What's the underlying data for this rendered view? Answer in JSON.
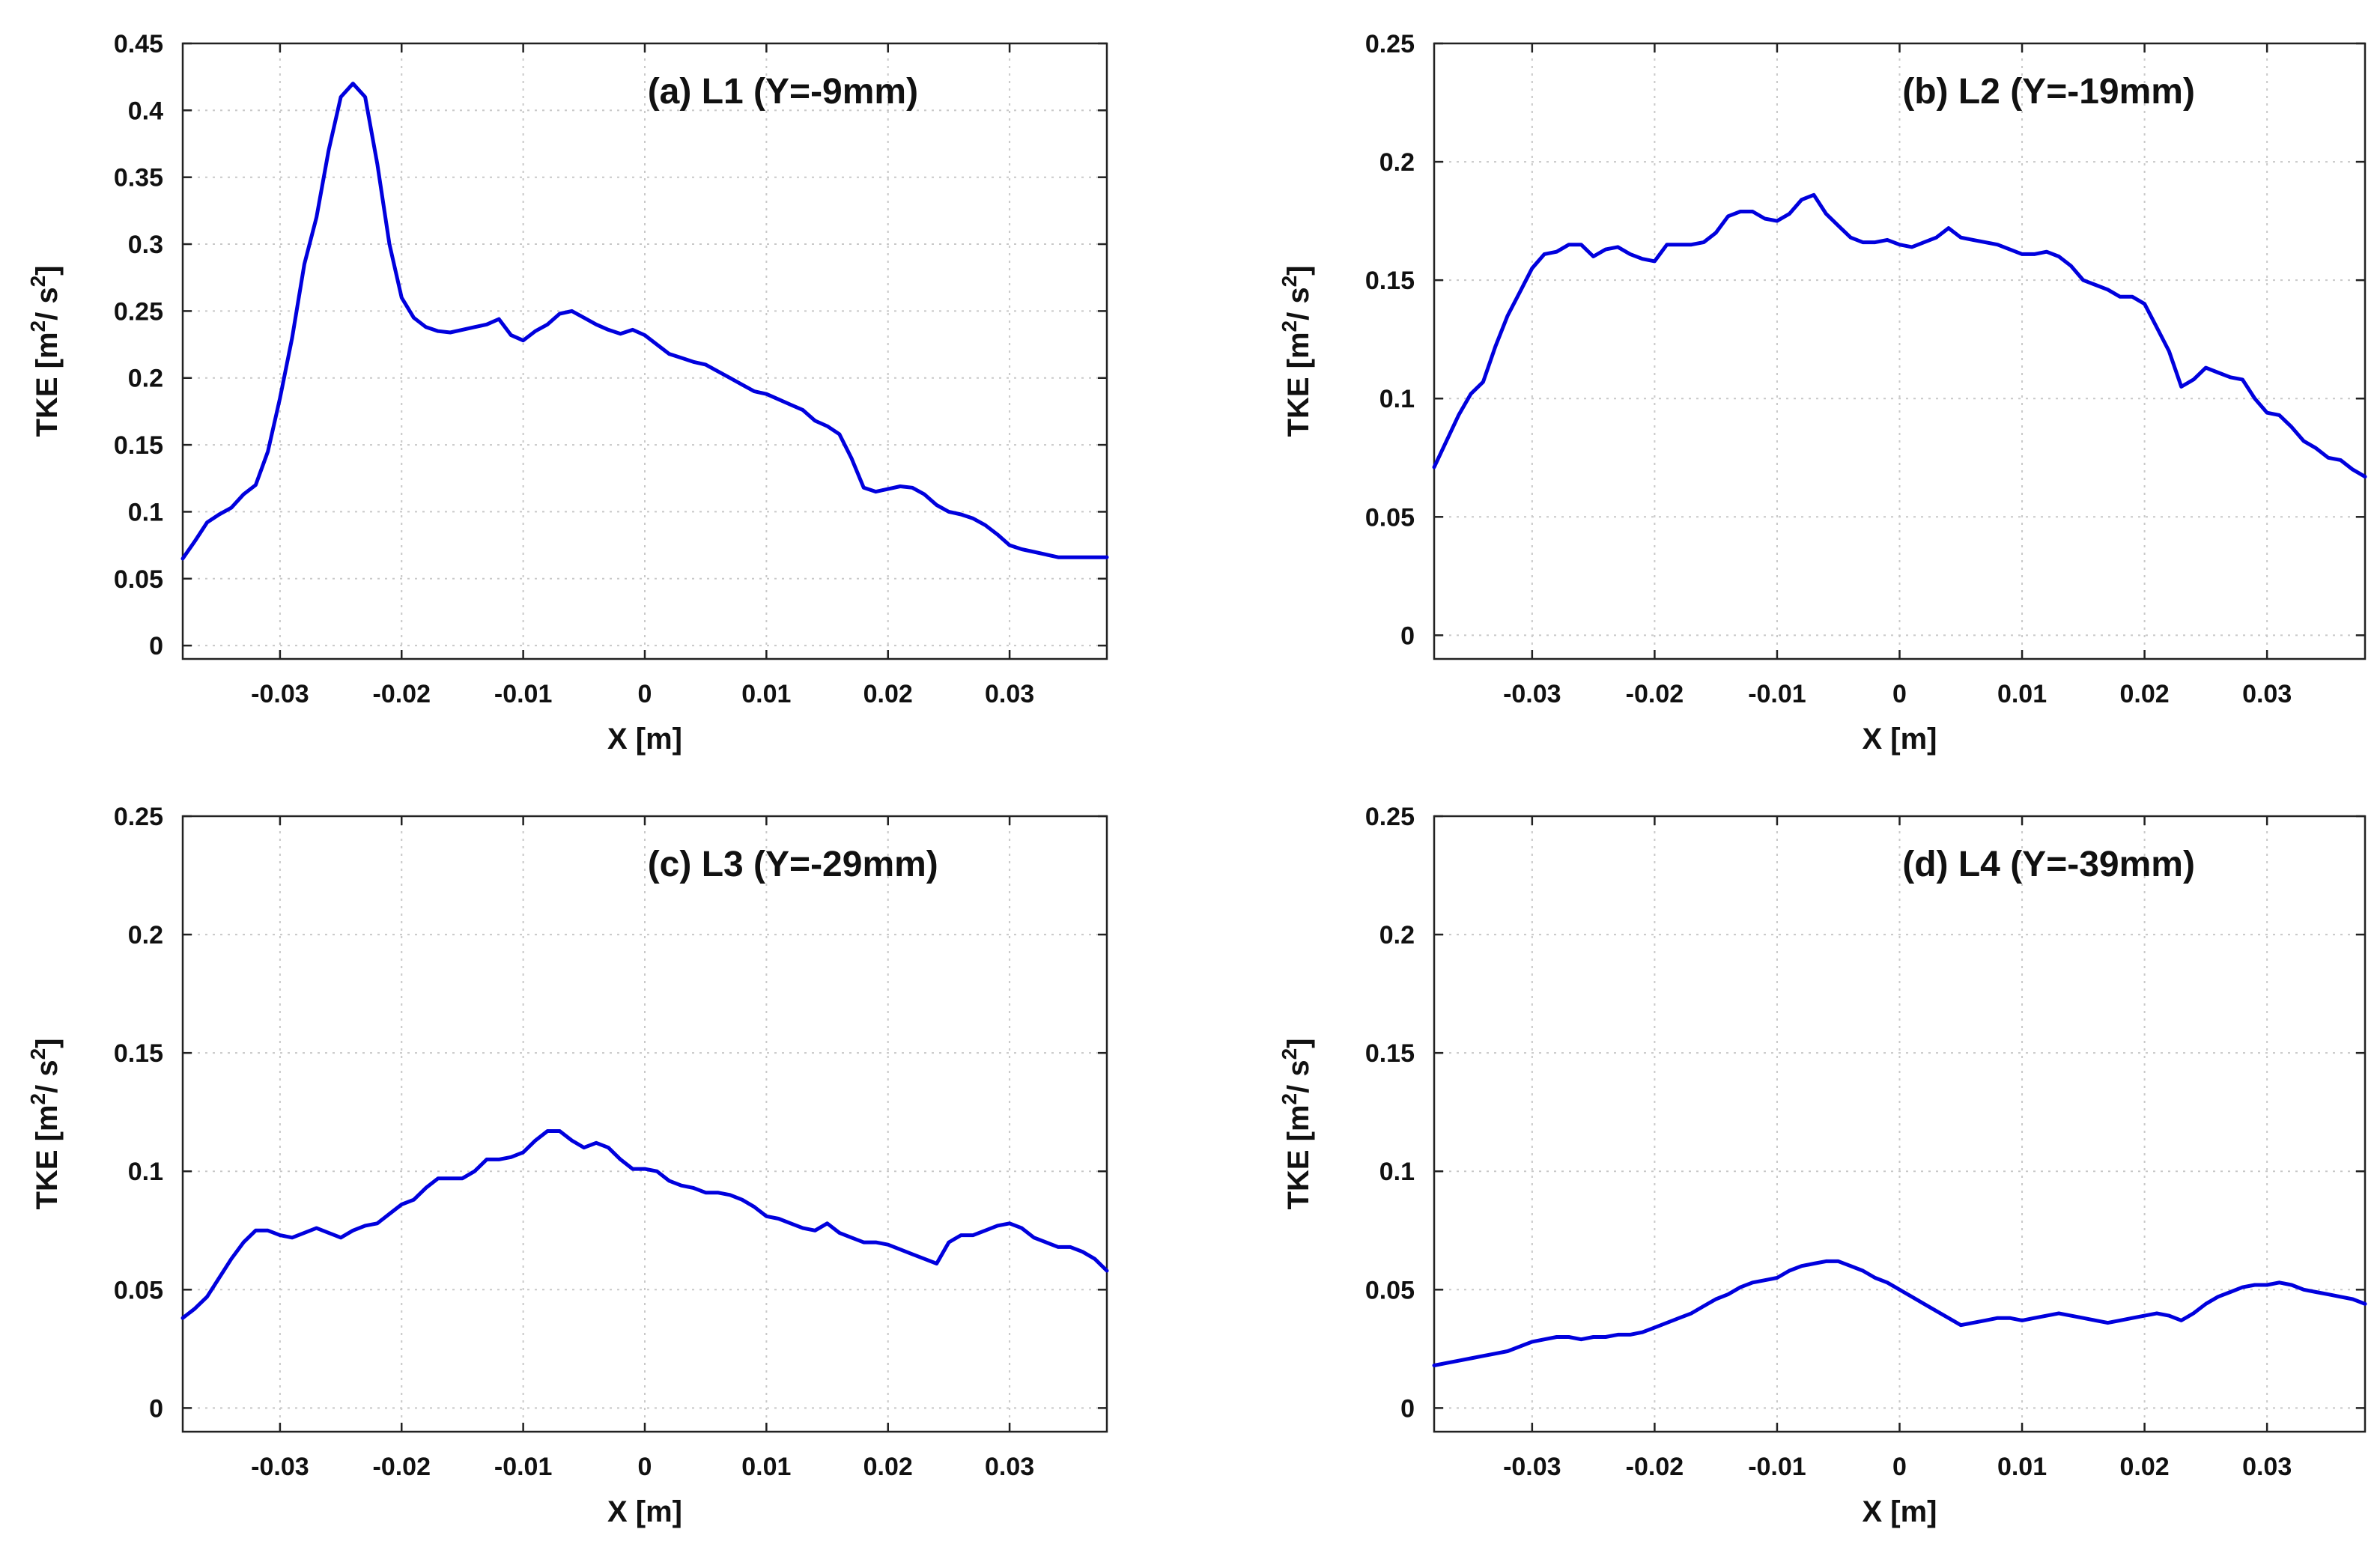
{
  "chart_data": [
    {
      "type": "line",
      "title": "(a) L1 (Y=-9mm)",
      "xlabel": "X [m]",
      "ylabel": "TKE [m2/ s2]",
      "ylabel_parts": {
        "base": "TKE [m",
        "sup1": "2",
        "mid": "/ s",
        "sup2": "2",
        "end": "]"
      },
      "xlim": [
        -0.038,
        0.038
      ],
      "ylim": [
        -0.01,
        0.45
      ],
      "xticks": [
        -0.03,
        -0.02,
        -0.01,
        0,
        0.01,
        0.02,
        0.03
      ],
      "xtick_labels": [
        "-0.03",
        "-0.02",
        "-0.01",
        "0",
        "0.01",
        "0.02",
        "0.03"
      ],
      "yticks": [
        0,
        0.05,
        0.1,
        0.15,
        0.2,
        0.25,
        0.3,
        0.35,
        0.4,
        0.45
      ],
      "ytick_labels": [
        "0",
        "0.05",
        "0.1",
        "0.15",
        "0.2",
        "0.25",
        "0.3",
        "0.35",
        "0.4",
        "0.45"
      ],
      "grid": true,
      "color": "#0000dd",
      "series": [
        {
          "name": "TKE",
          "x": [
            -0.038,
            -0.037,
            -0.036,
            -0.035,
            -0.034,
            -0.033,
            -0.032,
            -0.031,
            -0.03,
            -0.029,
            -0.028,
            -0.027,
            -0.026,
            -0.025,
            -0.024,
            -0.023,
            -0.022,
            -0.021,
            -0.02,
            -0.019,
            -0.018,
            -0.017,
            -0.016,
            -0.015,
            -0.014,
            -0.013,
            -0.012,
            -0.011,
            -0.01,
            -0.009,
            -0.008,
            -0.007,
            -0.006,
            -0.005,
            -0.004,
            -0.003,
            -0.002,
            -0.001,
            0.0,
            0.001,
            0.002,
            0.003,
            0.004,
            0.005,
            0.006,
            0.007,
            0.008,
            0.009,
            0.01,
            0.011,
            0.012,
            0.013,
            0.014,
            0.015,
            0.016,
            0.017,
            0.018,
            0.019,
            0.02,
            0.021,
            0.022,
            0.023,
            0.024,
            0.025,
            0.026,
            0.027,
            0.028,
            0.029,
            0.03,
            0.031,
            0.032,
            0.033,
            0.034,
            0.035,
            0.036,
            0.037,
            0.038
          ],
          "y": [
            0.065,
            0.078,
            0.092,
            0.098,
            0.103,
            0.113,
            0.12,
            0.145,
            0.185,
            0.23,
            0.285,
            0.32,
            0.37,
            0.41,
            0.42,
            0.41,
            0.36,
            0.3,
            0.26,
            0.245,
            0.238,
            0.235,
            0.234,
            0.236,
            0.238,
            0.24,
            0.244,
            0.232,
            0.228,
            0.235,
            0.24,
            0.248,
            0.25,
            0.245,
            0.24,
            0.236,
            0.233,
            0.236,
            0.232,
            0.225,
            0.218,
            0.215,
            0.212,
            0.21,
            0.205,
            0.2,
            0.195,
            0.19,
            0.188,
            0.184,
            0.18,
            0.176,
            0.168,
            0.164,
            0.158,
            0.14,
            0.118,
            0.115,
            0.117,
            0.119,
            0.118,
            0.113,
            0.105,
            0.1,
            0.098,
            0.095,
            0.09,
            0.083,
            0.075,
            0.072,
            0.07,
            0.068,
            0.066,
            0.066,
            0.066,
            0.066,
            0.066
          ]
        }
      ]
    },
    {
      "type": "line",
      "title": "(b) L2 (Y=-19mm)",
      "xlabel": "X [m]",
      "ylabel": "TKE [m2/ s2]",
      "ylabel_parts": {
        "base": "TKE [m",
        "sup1": "2",
        "mid": "/ s",
        "sup2": "2",
        "end": "]"
      },
      "xlim": [
        -0.038,
        0.038
      ],
      "ylim": [
        -0.01,
        0.25
      ],
      "xticks": [
        -0.03,
        -0.02,
        -0.01,
        0,
        0.01,
        0.02,
        0.03
      ],
      "xtick_labels": [
        "-0.03",
        "-0.02",
        "-0.01",
        "0",
        "0.01",
        "0.02",
        "0.03"
      ],
      "yticks": [
        0,
        0.05,
        0.1,
        0.15,
        0.2,
        0.25
      ],
      "ytick_labels": [
        "0",
        "0.05",
        "0.1",
        "0.15",
        "0.2",
        "0.25"
      ],
      "grid": true,
      "color": "#0000dd",
      "series": [
        {
          "name": "TKE",
          "x": [
            -0.038,
            -0.037,
            -0.036,
            -0.035,
            -0.034,
            -0.033,
            -0.032,
            -0.031,
            -0.03,
            -0.029,
            -0.028,
            -0.027,
            -0.026,
            -0.025,
            -0.024,
            -0.023,
            -0.022,
            -0.021,
            -0.02,
            -0.019,
            -0.018,
            -0.017,
            -0.016,
            -0.015,
            -0.014,
            -0.013,
            -0.012,
            -0.011,
            -0.01,
            -0.009,
            -0.008,
            -0.007,
            -0.006,
            -0.005,
            -0.004,
            -0.003,
            -0.002,
            -0.001,
            0.0,
            0.001,
            0.002,
            0.003,
            0.004,
            0.005,
            0.006,
            0.007,
            0.008,
            0.009,
            0.01,
            0.011,
            0.012,
            0.013,
            0.014,
            0.015,
            0.016,
            0.017,
            0.018,
            0.019,
            0.02,
            0.021,
            0.022,
            0.023,
            0.024,
            0.025,
            0.026,
            0.027,
            0.028,
            0.029,
            0.03,
            0.031,
            0.032,
            0.033,
            0.034,
            0.035,
            0.036,
            0.037,
            0.038
          ],
          "y": [
            0.071,
            0.082,
            0.093,
            0.102,
            0.107,
            0.122,
            0.135,
            0.145,
            0.155,
            0.161,
            0.162,
            0.165,
            0.165,
            0.16,
            0.163,
            0.164,
            0.161,
            0.159,
            0.158,
            0.165,
            0.165,
            0.165,
            0.166,
            0.17,
            0.177,
            0.179,
            0.179,
            0.176,
            0.175,
            0.178,
            0.184,
            0.186,
            0.178,
            0.173,
            0.168,
            0.166,
            0.166,
            0.167,
            0.165,
            0.164,
            0.166,
            0.168,
            0.172,
            0.168,
            0.167,
            0.166,
            0.165,
            0.163,
            0.161,
            0.161,
            0.162,
            0.16,
            0.156,
            0.15,
            0.148,
            0.146,
            0.143,
            0.143,
            0.14,
            0.13,
            0.12,
            0.105,
            0.108,
            0.113,
            0.111,
            0.109,
            0.108,
            0.1,
            0.094,
            0.093,
            0.088,
            0.082,
            0.079,
            0.075,
            0.074,
            0.07,
            0.067
          ]
        }
      ]
    },
    {
      "type": "line",
      "title": "(c) L3 (Y=-29mm)",
      "xlabel": "X [m]",
      "ylabel": "TKE [m2/ s2]",
      "ylabel_parts": {
        "base": "TKE [m",
        "sup1": "2",
        "mid": "/ s",
        "sup2": "2",
        "end": "]"
      },
      "xlim": [
        -0.038,
        0.038
      ],
      "ylim": [
        -0.01,
        0.25
      ],
      "xticks": [
        -0.03,
        -0.02,
        -0.01,
        0,
        0.01,
        0.02,
        0.03
      ],
      "xtick_labels": [
        "-0.03",
        "-0.02",
        "-0.01",
        "0",
        "0.01",
        "0.02",
        "0.03"
      ],
      "yticks": [
        0,
        0.05,
        0.1,
        0.15,
        0.2,
        0.25
      ],
      "ytick_labels": [
        "0",
        "0.05",
        "0.1",
        "0.15",
        "0.2",
        "0.25"
      ],
      "grid": true,
      "color": "#0000dd",
      "series": [
        {
          "name": "TKE",
          "x": [
            -0.038,
            -0.037,
            -0.036,
            -0.035,
            -0.034,
            -0.033,
            -0.032,
            -0.031,
            -0.03,
            -0.029,
            -0.028,
            -0.027,
            -0.026,
            -0.025,
            -0.024,
            -0.023,
            -0.022,
            -0.021,
            -0.02,
            -0.019,
            -0.018,
            -0.017,
            -0.016,
            -0.015,
            -0.014,
            -0.013,
            -0.012,
            -0.011,
            -0.01,
            -0.009,
            -0.008,
            -0.007,
            -0.006,
            -0.005,
            -0.004,
            -0.003,
            -0.002,
            -0.001,
            0.0,
            0.001,
            0.002,
            0.003,
            0.004,
            0.005,
            0.006,
            0.007,
            0.008,
            0.009,
            0.01,
            0.011,
            0.012,
            0.013,
            0.014,
            0.015,
            0.016,
            0.017,
            0.018,
            0.019,
            0.02,
            0.021,
            0.022,
            0.023,
            0.024,
            0.025,
            0.026,
            0.027,
            0.028,
            0.029,
            0.03,
            0.031,
            0.032,
            0.033,
            0.034,
            0.035,
            0.036,
            0.037,
            0.038
          ],
          "y": [
            0.038,
            0.042,
            0.047,
            0.055,
            0.063,
            0.07,
            0.075,
            0.075,
            0.073,
            0.072,
            0.074,
            0.076,
            0.074,
            0.072,
            0.075,
            0.077,
            0.078,
            0.082,
            0.086,
            0.088,
            0.093,
            0.097,
            0.097,
            0.097,
            0.1,
            0.105,
            0.105,
            0.106,
            0.108,
            0.113,
            0.117,
            0.117,
            0.113,
            0.11,
            0.112,
            0.11,
            0.105,
            0.101,
            0.101,
            0.1,
            0.096,
            0.094,
            0.093,
            0.091,
            0.091,
            0.09,
            0.088,
            0.085,
            0.081,
            0.08,
            0.078,
            0.076,
            0.075,
            0.078,
            0.074,
            0.072,
            0.07,
            0.07,
            0.069,
            0.067,
            0.065,
            0.063,
            0.061,
            0.07,
            0.073,
            0.073,
            0.075,
            0.077,
            0.078,
            0.076,
            0.072,
            0.07,
            0.068,
            0.068,
            0.066,
            0.063,
            0.058
          ]
        }
      ]
    },
    {
      "type": "line",
      "title": "(d) L4 (Y=-39mm)",
      "xlabel": "X [m]",
      "ylabel": "TKE [m2/ s2]",
      "ylabel_parts": {
        "base": "TKE [m",
        "sup1": "2",
        "mid": "/ s",
        "sup2": "2",
        "end": "]"
      },
      "xlim": [
        -0.038,
        0.038
      ],
      "ylim": [
        -0.01,
        0.25
      ],
      "xticks": [
        -0.03,
        -0.02,
        -0.01,
        0,
        0.01,
        0.02,
        0.03
      ],
      "xtick_labels": [
        "-0.03",
        "-0.02",
        "-0.01",
        "0",
        "0.01",
        "0.02",
        "0.03"
      ],
      "yticks": [
        0,
        0.05,
        0.1,
        0.15,
        0.2,
        0.25
      ],
      "ytick_labels": [
        "0",
        "0.05",
        "0.1",
        "0.15",
        "0.2",
        "0.25"
      ],
      "grid": true,
      "color": "#0000dd",
      "series": [
        {
          "name": "TKE",
          "x": [
            -0.038,
            -0.037,
            -0.036,
            -0.035,
            -0.034,
            -0.033,
            -0.032,
            -0.031,
            -0.03,
            -0.029,
            -0.028,
            -0.027,
            -0.026,
            -0.025,
            -0.024,
            -0.023,
            -0.022,
            -0.021,
            -0.02,
            -0.019,
            -0.018,
            -0.017,
            -0.016,
            -0.015,
            -0.014,
            -0.013,
            -0.012,
            -0.011,
            -0.01,
            -0.009,
            -0.008,
            -0.007,
            -0.006,
            -0.005,
            -0.004,
            -0.003,
            -0.002,
            -0.001,
            0.0,
            0.001,
            0.002,
            0.003,
            0.004,
            0.005,
            0.006,
            0.007,
            0.008,
            0.009,
            0.01,
            0.011,
            0.012,
            0.013,
            0.014,
            0.015,
            0.016,
            0.017,
            0.018,
            0.019,
            0.02,
            0.021,
            0.022,
            0.023,
            0.024,
            0.025,
            0.026,
            0.027,
            0.028,
            0.029,
            0.03,
            0.031,
            0.032,
            0.033,
            0.034,
            0.035,
            0.036,
            0.037,
            0.038
          ],
          "y": [
            0.018,
            0.019,
            0.02,
            0.021,
            0.022,
            0.023,
            0.024,
            0.026,
            0.028,
            0.029,
            0.03,
            0.03,
            0.029,
            0.03,
            0.03,
            0.031,
            0.031,
            0.032,
            0.034,
            0.036,
            0.038,
            0.04,
            0.043,
            0.046,
            0.048,
            0.051,
            0.053,
            0.054,
            0.055,
            0.058,
            0.06,
            0.061,
            0.062,
            0.062,
            0.06,
            0.058,
            0.055,
            0.053,
            0.05,
            0.047,
            0.044,
            0.041,
            0.038,
            0.035,
            0.036,
            0.037,
            0.038,
            0.038,
            0.037,
            0.038,
            0.039,
            0.04,
            0.039,
            0.038,
            0.037,
            0.036,
            0.037,
            0.038,
            0.039,
            0.04,
            0.039,
            0.037,
            0.04,
            0.044,
            0.047,
            0.049,
            0.051,
            0.052,
            0.052,
            0.053,
            0.052,
            0.05,
            0.049,
            0.048,
            0.047,
            0.046,
            0.044
          ]
        }
      ]
    }
  ]
}
